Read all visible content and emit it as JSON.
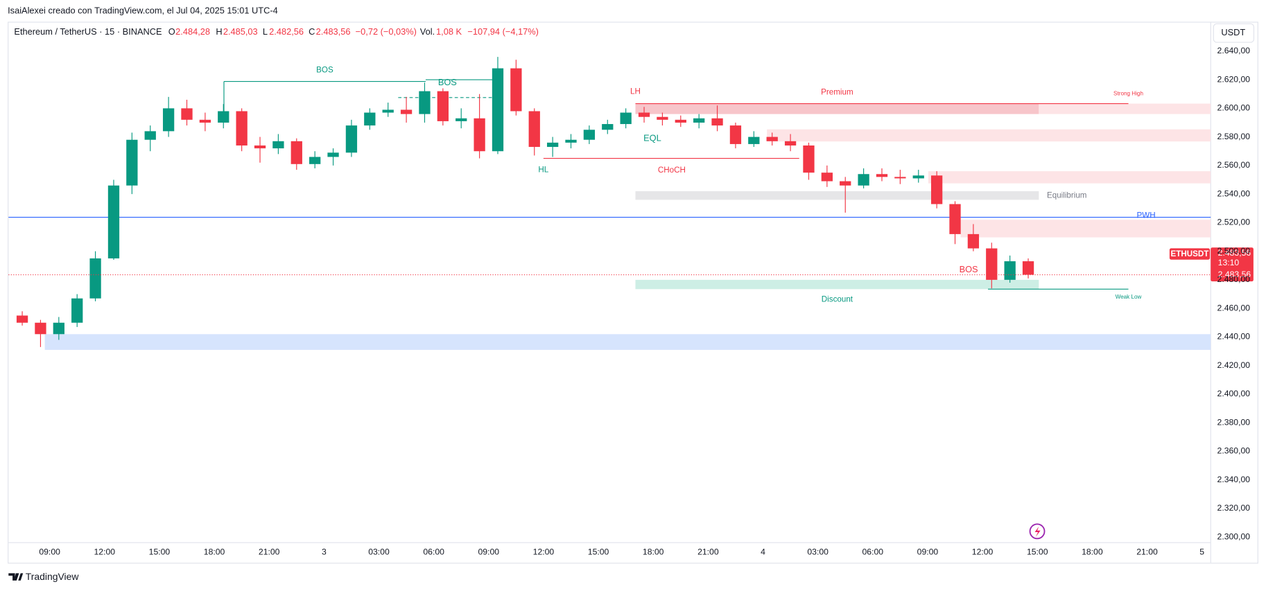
{
  "header": {
    "attribution": "IsaiAlexei creado con TradingView.com, el Jul 04, 2025 15:01 UTC-4"
  },
  "legend": {
    "symbol": "Ethereum / TetherUS · 15 · BINANCE",
    "o_label": "O",
    "o": "2.484,28",
    "h_label": "H",
    "h": "2.485,03",
    "l_label": "L",
    "l": "2.482,56",
    "c_label": "C",
    "c": "2.483,56",
    "change": "−0,72 (−0,03%)",
    "vol_label": "Vol.",
    "vol": "1,08 K",
    "vol_change": "−107,94 (−4,17%)"
  },
  "currency_button": "USDT",
  "price_tag": {
    "symbol": "ETHUSDT",
    "price": "2.483,56",
    "countdown": "13:10",
    "close_price": "2.483,56"
  },
  "footer": {
    "brand": "TradingView"
  },
  "chart_data": {
    "type": "candlestick",
    "up_color": "#089981",
    "down_color": "#f23645",
    "grid": false,
    "categories": [
      null,
      null,
      "09:00",
      null,
      null,
      "12:00",
      null,
      null,
      "15:00",
      null,
      null,
      "18:00",
      null,
      null,
      "21:00",
      null,
      null,
      "3",
      null,
      null,
      "03:00",
      null,
      null,
      "06:00",
      null,
      null,
      "09:00",
      null,
      null,
      "12:00",
      null,
      null,
      "15:00",
      null,
      null,
      "18:00",
      null,
      null,
      "21:00",
      null,
      null,
      "4",
      null,
      null,
      "03:00",
      null,
      null,
      "06:00",
      null,
      null,
      "09:00",
      null,
      null,
      "12:00",
      null,
      null,
      "15:00",
      null,
      null,
      "18:00",
      null,
      null,
      "21:00",
      null,
      null,
      "5"
    ],
    "open": [
      2455,
      2450,
      2442,
      2450,
      2467,
      2495,
      2546,
      2578,
      2584,
      2600,
      2592,
      2590,
      2598,
      2574,
      2572,
      2577,
      2561,
      2566,
      2569,
      2588,
      2597,
      2599,
      2596,
      2612,
      2591,
      2593,
      2570,
      2628,
      2598,
      2573,
      2576,
      2578,
      2585,
      2589,
      2597,
      2594,
      2592,
      2590,
      2593,
      2588,
      2575,
      2580,
      2577,
      2574,
      2555,
      2549,
      2546,
      2554,
      2552,
      2551,
      2553,
      2533,
      2512,
      2502,
      2480,
      2493,
      null,
      null,
      null,
      null,
      null,
      null,
      null,
      null,
      null,
      null
    ],
    "high": [
      2458,
      2452,
      2454,
      2470,
      2500,
      2550,
      2583,
      2588,
      2608,
      2606,
      2597,
      2603,
      2600,
      2580,
      2582,
      2579,
      2570,
      2572,
      2592,
      2600,
      2604,
      2608,
      2618,
      2614,
      2600,
      2610,
      2636,
      2634,
      2600,
      2580,
      2582,
      2588,
      2592,
      2600,
      2601,
      2597,
      2595,
      2596,
      2602,
      2590,
      2584,
      2583,
      2582,
      2576,
      2560,
      2552,
      2558,
      2558,
      2557,
      2557,
      2556,
      2535,
      2519,
      2506,
      2497,
      2495,
      null,
      null,
      null,
      null,
      null,
      null,
      null,
      null,
      null,
      null
    ],
    "low": [
      2448,
      2433,
      2438,
      2447,
      2465,
      2494,
      2540,
      2570,
      2580,
      2588,
      2584,
      2586,
      2570,
      2562,
      2568,
      2557,
      2558,
      2560,
      2566,
      2585,
      2594,
      2590,
      2590,
      2588,
      2586,
      2565,
      2568,
      2595,
      2567,
      2566,
      2572,
      2575,
      2582,
      2586,
      2590,
      2588,
      2587,
      2586,
      2584,
      2572,
      2573,
      2574,
      2570,
      2550,
      2545,
      2527,
      2544,
      2549,
      2547,
      2548,
      2530,
      2505,
      2500,
      2474,
      2478,
      2481,
      null,
      null,
      null,
      null,
      null,
      null,
      null,
      null,
      null,
      null
    ],
    "close": [
      2450,
      2442,
      2450,
      2467,
      2495,
      2546,
      2578,
      2584,
      2600,
      2592,
      2590,
      2598,
      2574,
      2572,
      2577,
      2561,
      2566,
      2569,
      2588,
      2597,
      2599,
      2596,
      2612,
      2591,
      2593,
      2570,
      2628,
      2598,
      2573,
      2576,
      2578,
      2585,
      2589,
      2597,
      2594,
      2592,
      2590,
      2593,
      2588,
      2575,
      2580,
      2577,
      2574,
      2555,
      2549,
      2546,
      2554,
      2552,
      2551,
      2553,
      2533,
      2512,
      2502,
      2480,
      2493,
      2483.56,
      null,
      null,
      null,
      null,
      null,
      null,
      null,
      null,
      null,
      null
    ],
    "ylim": [
      2295,
      2660
    ],
    "yticks": [
      {
        "value": 2300,
        "label": "2.300,00"
      },
      {
        "value": 2320,
        "label": "2.320,00"
      },
      {
        "value": 2340,
        "label": "2.340,00"
      },
      {
        "value": 2360,
        "label": "2.360,00"
      },
      {
        "value": 2380,
        "label": "2.380,00"
      },
      {
        "value": 2400,
        "label": "2.400,00"
      },
      {
        "value": 2420,
        "label": "2.420,00"
      },
      {
        "value": 2440,
        "label": "2.440,00"
      },
      {
        "value": 2460,
        "label": "2.460,00"
      },
      {
        "value": 2480,
        "label": "2.480,00"
      },
      {
        "value": 2500,
        "label": "2.500,00"
      },
      {
        "value": 2520,
        "label": "2.520,00"
      },
      {
        "value": 2540,
        "label": "2.540,00"
      },
      {
        "value": 2560,
        "label": "2.560,00"
      },
      {
        "value": 2580,
        "label": "2.580,00"
      },
      {
        "value": 2600,
        "label": "2.600,00"
      },
      {
        "value": 2620,
        "label": "2.620,00"
      },
      {
        "value": 2640,
        "label": "2.640,00"
      }
    ],
    "zones": [
      {
        "label": "Premium",
        "top": 2603.3,
        "bottom": 2596,
        "color": "#f7c5ca"
      },
      {
        "top": 2603.3,
        "bottom": 2596,
        "color": "#fde4e6"
      },
      {
        "top": 2585.3,
        "bottom": 2576.8,
        "color": "#fde4e6"
      },
      {
        "top": 2556,
        "bottom": 2547.5,
        "color": "#fde4e6"
      },
      {
        "label": "Equilibrium",
        "top": 2542,
        "bottom": 2536,
        "color": "#e6e6e8"
      },
      {
        "top": 2522,
        "bottom": 2509.7,
        "color": "#fde4e6"
      },
      {
        "label": "Discount",
        "top": 2480,
        "bottom": 2473.5,
        "color": "#cdeee5"
      },
      {
        "top": 2442,
        "bottom": 2431,
        "color": "#d6e4fd"
      }
    ],
    "levels": [
      {
        "label": "Strong High",
        "price": 2603.3,
        "color": "#f23645"
      },
      {
        "label": "PWH",
        "price": 2523.8,
        "color": "#2962ff"
      },
      {
        "label": "Weak Low",
        "price": 2473.5,
        "color": "#089981"
      },
      {
        "label": "BOS",
        "price": 2618.8,
        "color": "#089981"
      },
      {
        "label": "BOS",
        "price": 2620,
        "color": "#089981"
      },
      {
        "label": "CHoCH",
        "price": 2565,
        "color": "#f23645"
      }
    ],
    "labels": [
      {
        "text": "LH",
        "color": "#f23645"
      },
      {
        "text": "HL",
        "color": "#089981"
      },
      {
        "text": "EQL",
        "color": "#089981"
      },
      {
        "text": "BOS",
        "color": "#f23645"
      }
    ]
  }
}
